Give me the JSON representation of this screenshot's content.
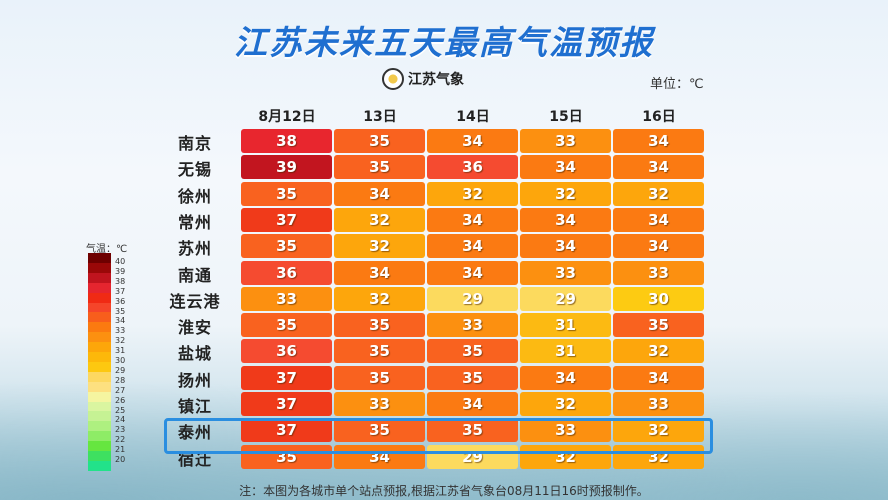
{
  "title": "江苏未来五天最高气温预报",
  "logo_text": "江苏气象",
  "unit_label": "单位：℃",
  "legend": {
    "title": "气温：℃",
    "ticks": [
      40,
      39,
      38,
      37,
      36,
      35,
      34,
      33,
      32,
      31,
      30,
      29,
      28,
      27,
      26,
      25,
      24,
      23,
      22,
      21,
      20
    ],
    "colors": [
      "#6e0000",
      "#9a0808",
      "#c0141e",
      "#e5252f",
      "#f02a14",
      "#f5452a",
      "#f85e1c",
      "#fb7a10",
      "#fc9010",
      "#fda60a",
      "#fdb80a",
      "#fdc810",
      "#fdd860",
      "#fde080",
      "#f5f5a0",
      "#daf5a0",
      "#c6f294",
      "#aef080",
      "#8eec66",
      "#66e640",
      "#3ee060",
      "#22e28a"
    ]
  },
  "chart_data": {
    "type": "heatmap",
    "title": "江苏未来五天最高气温预报",
    "unit": "℃",
    "columns": [
      "8月12日",
      "13日",
      "14日",
      "15日",
      "16日"
    ],
    "rows": [
      {
        "city": "南京",
        "values": [
          38,
          35,
          34,
          33,
          34
        ]
      },
      {
        "city": "无锡",
        "values": [
          39,
          35,
          36,
          34,
          34
        ]
      },
      {
        "city": "徐州",
        "values": [
          35,
          34,
          32,
          32,
          32
        ]
      },
      {
        "city": "常州",
        "values": [
          37,
          32,
          34,
          34,
          34
        ]
      },
      {
        "city": "苏州",
        "values": [
          35,
          32,
          34,
          34,
          34
        ]
      },
      {
        "city": "南通",
        "values": [
          36,
          34,
          34,
          33,
          33
        ]
      },
      {
        "city": "连云港",
        "values": [
          33,
          32,
          29,
          29,
          30
        ]
      },
      {
        "city": "淮安",
        "values": [
          35,
          35,
          33,
          31,
          35
        ]
      },
      {
        "city": "盐城",
        "values": [
          36,
          35,
          35,
          31,
          32
        ]
      },
      {
        "city": "扬州",
        "values": [
          37,
          35,
          35,
          34,
          34
        ]
      },
      {
        "city": "镇江",
        "values": [
          37,
          33,
          34,
          32,
          33
        ]
      },
      {
        "city": "泰州",
        "values": [
          37,
          35,
          35,
          33,
          32
        ]
      },
      {
        "city": "宿迁",
        "values": [
          35,
          34,
          29,
          32,
          32
        ]
      }
    ],
    "highlighted_row": "泰州"
  },
  "cell_colors": {
    "39": "#c2151f",
    "38": "#e8262e",
    "37": "#f03a1a",
    "36": "#f54b30",
    "35": "#f9621f",
    "34": "#fb7a12",
    "33": "#fc9010",
    "32": "#fda60c",
    "31": "#fcba12",
    "30": "#fdcb12",
    "29": "#fcda5e"
  },
  "highlight_color": "#2a8ee0",
  "note": "注：本图为各城市单个站点预报,根据江苏省气象台08月11日16时预报制作。"
}
